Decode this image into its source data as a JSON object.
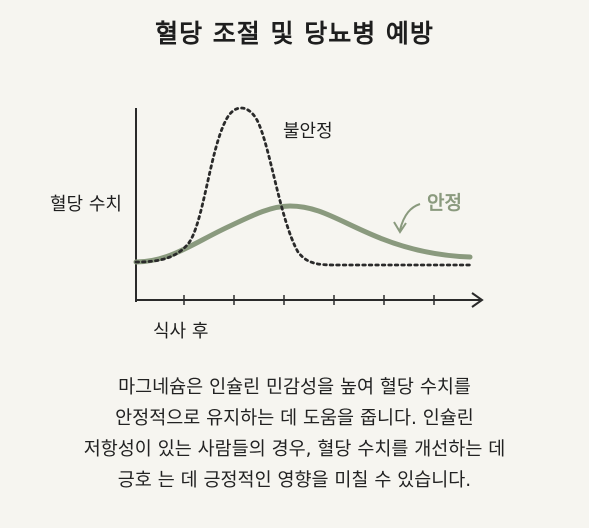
{
  "title": "혈당 조절 및 당뇨병 예방",
  "diagram": {
    "y_axis_label": "혈당 수치",
    "x_axis_label": "식사 후",
    "unstable_label": "불안정",
    "stable_label": "안정",
    "colors": {
      "unstable_curve": "#2a2a2a",
      "stable_curve": "#8a9a7e",
      "axis": "#2a2a2a"
    }
  },
  "caption": [
    "마그네슘은 인슐린 민감성을 높여 혈당 수치를",
    "안정적으로 유지하는 데 도움을 줍니다. 인슐린",
    "저항성이 있는 사람들의 경우, 혈당 수치를 개선하는 데",
    "긍호 는 데 긍정적인 영향을 미칠 수 있습니다."
  ]
}
